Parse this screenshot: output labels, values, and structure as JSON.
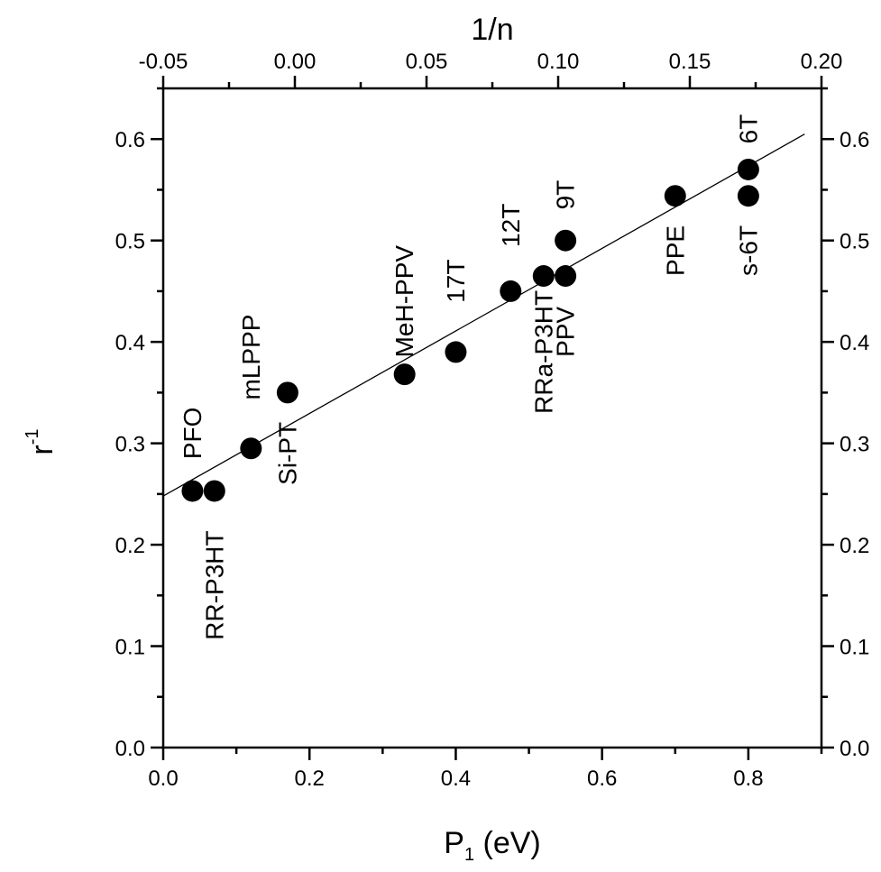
{
  "chart_data": {
    "type": "scatter",
    "title": "",
    "xlabel": "P",
    "xlabel_sub": "1",
    "xlabel_unit": " (eV)",
    "ylabel": "r",
    "ylabel_sup": "-1",
    "top_xlabel": "1/n",
    "xlim": [
      0.0,
      0.9
    ],
    "ylim": [
      0.0,
      0.65
    ],
    "top_xlim": [
      -0.05,
      0.2
    ],
    "x_ticks": [
      "0.0",
      "0.2",
      "0.4",
      "0.6",
      "0.8"
    ],
    "y_ticks": [
      "0.0",
      "0.1",
      "0.2",
      "0.3",
      "0.4",
      "0.5",
      "0.6"
    ],
    "right_y_ticks": [
      "0.0",
      "0.1",
      "0.2",
      "0.3",
      "0.4",
      "0.5",
      "0.6"
    ],
    "top_x_ticks": [
      "-0.05",
      "0.00",
      "0.05",
      "0.10",
      "0.15",
      "0.20"
    ],
    "points": [
      {
        "x": 0.04,
        "y": 0.253
      },
      {
        "x": 0.07,
        "y": 0.253
      },
      {
        "x": 0.12,
        "y": 0.295
      },
      {
        "x": 0.17,
        "y": 0.35
      },
      {
        "x": 0.33,
        "y": 0.368
      },
      {
        "x": 0.4,
        "y": 0.39
      },
      {
        "x": 0.475,
        "y": 0.45
      },
      {
        "x": 0.52,
        "y": 0.465
      },
      {
        "x": 0.55,
        "y": 0.465
      },
      {
        "x": 0.55,
        "y": 0.5
      },
      {
        "x": 0.7,
        "y": 0.544
      },
      {
        "x": 0.8,
        "y": 0.57
      },
      {
        "x": 0.8,
        "y": 0.544
      }
    ],
    "point_labels": [
      {
        "text": "PFO",
        "x": 0.04,
        "y": 0.31
      },
      {
        "text": "RR-P3HT",
        "x": 0.07,
        "y": 0.16
      },
      {
        "text": "mLPPP",
        "x": 0.12,
        "y": 0.385
      },
      {
        "text": "Si-PT",
        "x": 0.17,
        "y": 0.29
      },
      {
        "text": "MeH-PPV",
        "x": 0.33,
        "y": 0.44
      },
      {
        "text": "17T",
        "x": 0.4,
        "y": 0.46
      },
      {
        "text": "12T",
        "x": 0.475,
        "y": 0.515
      },
      {
        "text": "RRa-P3HT",
        "x": 0.52,
        "y": 0.39
      },
      {
        "text": "PPV",
        "x": 0.55,
        "y": 0.41
      },
      {
        "text": "9T",
        "x": 0.55,
        "y": 0.545
      },
      {
        "text": "PPE",
        "x": 0.7,
        "y": 0.49
      },
      {
        "text": "6T",
        "x": 0.8,
        "y": 0.61
      },
      {
        "text": "s-6T",
        "x": 0.8,
        "y": 0.49
      }
    ],
    "fit_line": {
      "intercept": 0.248,
      "slope": 0.407,
      "x_start": 0.0,
      "x_end": 0.877
    }
  }
}
